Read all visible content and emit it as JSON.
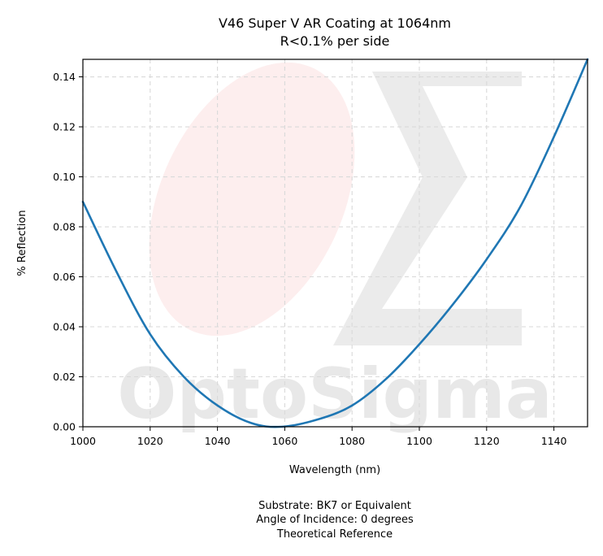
{
  "chart_data": {
    "type": "line",
    "title": "V46 Super V AR Coating at 1064nm",
    "subtitle": "R<0.1% per side",
    "xlabel": "Wavelength (nm)",
    "ylabel": "% Reflection",
    "xlim": [
      1000,
      1150
    ],
    "ylim": [
      0,
      0.147
    ],
    "xticks": [
      1000,
      1020,
      1040,
      1060,
      1080,
      1100,
      1120,
      1140
    ],
    "yticks": [
      0.0,
      0.02,
      0.04,
      0.06,
      0.08,
      0.1,
      0.12,
      0.14
    ],
    "grid": true,
    "series_color": "#1f77b4",
    "series": [
      {
        "x": [
          1000,
          1010,
          1020,
          1030,
          1040,
          1050,
          1059,
          1070,
          1080,
          1090,
          1100,
          1110,
          1120,
          1130,
          1140,
          1150
        ],
        "y": [
          0.09,
          0.062,
          0.037,
          0.02,
          0.0085,
          0.0015,
          0.0,
          0.003,
          0.0085,
          0.019,
          0.033,
          0.049,
          0.067,
          0.088,
          0.116,
          0.147
        ]
      }
    ],
    "footnotes": [
      "Substrate: BK7 or Equivalent",
      "Angle of Incidence: 0 degrees",
      "Theoretical Reference"
    ],
    "watermark": {
      "text": "OptoSigma",
      "text_color": "#e8e8e8",
      "ellipse_color": "#fdeeee",
      "sigma_color": "#ebebeb"
    }
  }
}
